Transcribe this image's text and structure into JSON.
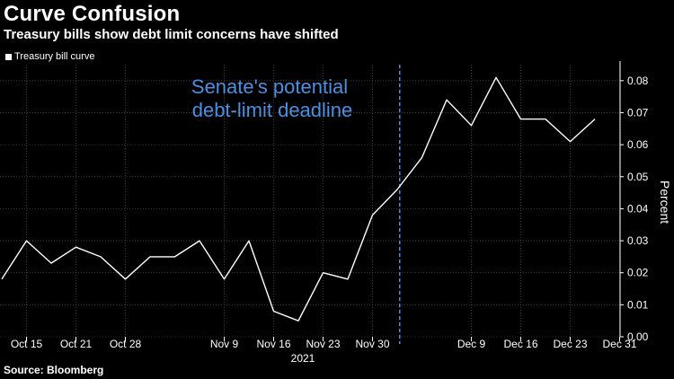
{
  "title": "Curve Confusion",
  "subtitle": "Treasury bills show debt limit concerns have shifted",
  "legend_label": "Treasury bill curve",
  "source": "Source: Bloomberg",
  "colors": {
    "background": "#000000",
    "line": "#ffffff",
    "grid": "#4a4a4a",
    "annotation": "#4a90e2"
  },
  "chart_data": {
    "type": "line",
    "title": "Curve Confusion",
    "subtitle": "Treasury bills show debt limit concerns have shifted",
    "xlabel": "2021",
    "ylabel": "Percent",
    "ylim": [
      0.0,
      0.085
    ],
    "y_ticks": [
      0.0,
      0.01,
      0.02,
      0.03,
      0.04,
      0.05,
      0.06,
      0.07,
      0.08
    ],
    "y_tick_labels": [
      "0.00",
      "0.01",
      "0.02",
      "0.03",
      "0.04",
      "0.05",
      "0.06",
      "0.07",
      "0.08"
    ],
    "x_tick_labels": [
      "Oct 15",
      "Oct 21",
      "Oct 28",
      "Nov 9",
      "Nov 16",
      "Nov 23",
      "Nov 30",
      "Dec 9",
      "Dec 16",
      "Dec 23",
      "Dec 31"
    ],
    "x_tick_index": [
      1,
      3,
      5,
      9,
      11,
      13,
      15,
      19,
      21,
      23,
      25
    ],
    "x_axis_year": "2021",
    "grid": true,
    "legend": "top-left",
    "series": [
      {
        "name": "Treasury bill curve",
        "values": [
          0.018,
          0.03,
          0.023,
          0.028,
          0.025,
          0.018,
          0.025,
          0.025,
          0.03,
          0.018,
          0.03,
          0.008,
          0.005,
          0.02,
          0.018,
          0.038,
          0.046,
          0.056,
          0.074,
          0.066,
          0.081,
          0.068,
          0.068,
          0.061,
          0.068
        ]
      }
    ],
    "annotation": {
      "text_line1": "Senate's potential",
      "text_line2": "debt-limit deadline",
      "x_index": 16.1
    }
  }
}
